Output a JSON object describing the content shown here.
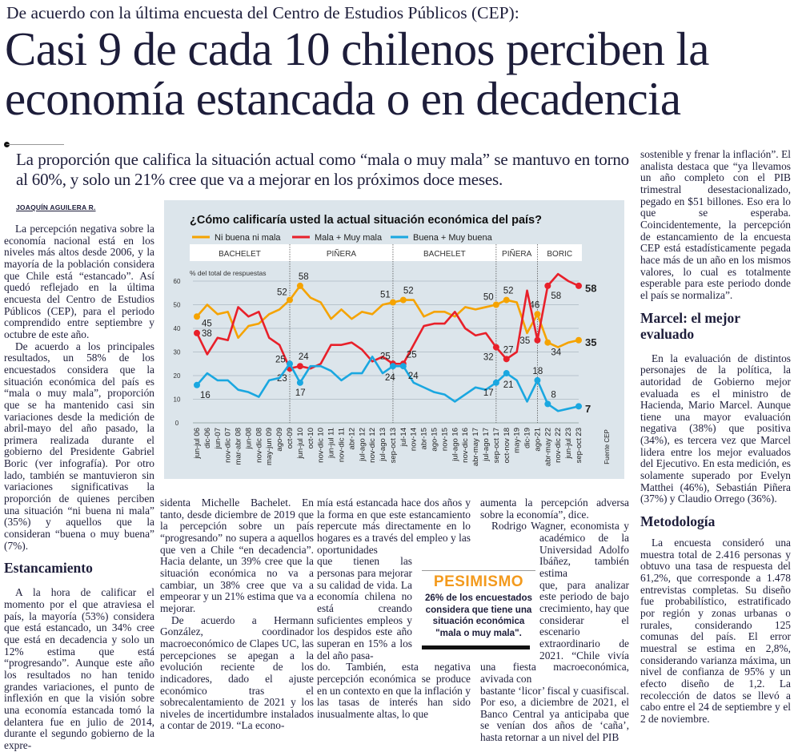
{
  "kicker": "De acuerdo con la última encuesta del Centro de Estudios Públicos (CEP):",
  "headline": [
    "Casi 9 de cada 10 chilenos perciben la",
    "economía estancada o en decadencia"
  ],
  "deck": "La proporción que califica la situación actual como “mala o muy mala” se mantuvo en torno al 60%, y solo un 21% cree que va a mejorar en los próximos doce meses.",
  "byline": "JOAQUÍN AGUILERA R.",
  "col1": {
    "p1": "La percepción negativa sobre la economía nacional está en los niveles más altos desde 2006, y la mayoría de la población considera que Chile está “estancado”. Así quedó reflejado en la última encuesta del Centro de Estudios Públicos (CEP), para el periodo comprendido entre septiembre y octubre de este año.",
    "p2": "De acuerdo a los principales resultados, un 58% de los encuestados considera que la situación económica del país es “mala o muy mala”, proporción que se ha mantenido casi sin variaciones desde la medición de abril-mayo del año pasado, la primera realizada durante el gobierno del Presidente Gabriel Boric (ver infografía). Por otro lado, también se mantuvieron sin variaciones significativas la proporción de quienes perciben una situación “ni buena ni mala” (35%) y aquellos que la consideran “buena o muy buena” (7%).",
    "subhead": "Estancamiento",
    "p3": "A la hora de calificar el momento por el que atraviesa el país, la mayoría (53%) considera que está estancado, un 34% cree que está en decadencia y solo un 12% estima que está “progresando”. Aunque este año los resultados no han tenido grandes variaciones, el punto de inflexión en que la visión sobre una economía estancada tomó la delantera fue en julio de 2014, durante el segundo gobierno de la expre-"
  },
  "col2": {
    "p1": "sidenta Michelle Bachelet. En tanto, desde diciembre de 2019 que la percepción sobre un país “progresando” no supera a aquellos que ven a Chile “en decadencia”. Hacia delante, un 39% cree que la situación económica no va a cambiar, un 38% cree que va a empeorar y un 21% estima que va a mejorar.",
    "p2": "De acuerdo a Hermann González, coordinador macroeconómico de Clapes UC, las percepciones se apegan a la evolución reciente de los indicadores, dado el ajuste económico tras el sobrecalentamiento de 2021 y los niveles de incertidumbre instalados a contar de 2019. “La econo-"
  },
  "col3": {
    "part1": "mía está estancada hace dos años y la forma en que este estancamiento repercute más directamente en lo hogares es a través del empleo y las oportunidades",
    "part2": "que tienen las personas para mejorar su calidad de vida. La economía chilena no está creando suficientes empleos y los despidos este año superan en 15% a los del año pasa-",
    "part3": "do. También, esta negativa percepción económica se produce en un contexto en que la inflación y las tasas de interés han sido inusualmente altas, lo que"
  },
  "col4": {
    "part1a": "aumenta la percepción adversa sobre la economía”, dice.",
    "part1b": "Rodrigo Wagner, economista y académico de la Universidad Adolfo Ibáñez, también estima",
    "part2": "que, para analizar este periodo de bajo crecimiento, hay que considerar el escenario extraordinario de 2021. “Chile vivía una fiesta macroeconómica, avivada con",
    "part3": "bastante ‘licor’ fiscal y cuasifiscal. Por eso, a diciembre de 2021, el Banco Central ya anticipaba que se venían dos años de ‘caña’, hasta retornar a un nivel del PIB"
  },
  "col5": {
    "p1": "sostenible y frenar la inflación”. El analista destaca que “ya llevamos un año completo con el PIB trimestral desestacionalizado, pegado en $51 billones. Eso era lo que se esperaba. Coincidentemente, la percepción de estancamiento de la encuesta CEP está estadísticamente pegada hace más de un año en los mismos valores, lo cual es totalmente esperable para este periodo donde el país se normaliza”.",
    "subhead1": "Marcel: el mejor evaluado",
    "p2": "En la evaluación de distintos personajes de la política, la autoridad de Gobierno mejor evaluada es el ministro de Hacienda, Mario Marcel. Aunque tiene una mayor evaluación negativa (38%) que positiva (34%), es tercera vez que Marcel lidera entre los mejor evaluados del Ejecutivo. En esta medición, es solamente superado por Evelyn Matthei (46%), Sebastián Piñera (37%) y Claudio Orrego (36%).",
    "subhead2": "Metodología",
    "p3": "La encuesta consideró una muestra total de 2.416 personas y obtuvo una tasa de respuesta del 61,2%, que corresponde a 1.478 entrevistas completas. Su diseño fue probabilístico, estratificado por región y zonas urbanas o rurales, considerando 125 comunas del país. El error muestral se estima en 2,8%, considerando varianza máxima, un nivel de confianza de 95% y un efecto diseño de 1,2. La recolección de datos se llevó a cabo entre el 24 de septiembre y el 2 de noviembre."
  },
  "pullquote": {
    "title": "PESIMISMO",
    "text": "26% de los encuestados considera que tiene una situación económica \"mala o muy mala\"."
  },
  "chart_data": {
    "type": "line",
    "title": "¿Cómo calificaría usted la actual situación económica del país?",
    "ylabel": "% del total de respuestas",
    "ylim": [
      0,
      60
    ],
    "yticks": [
      0,
      10,
      20,
      30,
      40,
      50,
      60
    ],
    "grid": true,
    "legend_placement": "top-left",
    "source_label": "Fuente",
    "source": "CEP",
    "categories": [
      "jun-jul 06",
      "dic-06",
      "jun-07",
      "nov-dic 07",
      "mar-abr 08",
      "jun-08",
      "nov-dic 08",
      "may-jun 09",
      "ago-09",
      "oct-09",
      "jun-jul 10",
      "oct-10",
      "nov-dic 10",
      "jun-jul 11",
      "nov-dic 11",
      "abr-12",
      "jul-ago 12",
      "nov-dic 12",
      "jul-ago 13",
      "sep-oct 13",
      "jul-14",
      "nov-14",
      "abr-15",
      "ago-15",
      "nov-15",
      "jul-ago 16",
      "nov-dic 16",
      "abr-may 17",
      "jul-ago 17",
      "sep-oct 17",
      "oct-nov 18",
      "may-19",
      "dic-19",
      "ago-21",
      "abr-may 22",
      "nov-dic 22",
      "jun-jul 23",
      "sep-oct 23"
    ],
    "periods": [
      {
        "label": "BACHELET",
        "start": 0,
        "end": 9
      },
      {
        "label": "PIÑERA",
        "start": 9,
        "end": 19
      },
      {
        "label": "BACHELET",
        "start": 19,
        "end": 29
      },
      {
        "label": "PIÑERA",
        "start": 29,
        "end": 33
      },
      {
        "label": "BORIC",
        "start": 33,
        "end": 37
      }
    ],
    "series": [
      {
        "name": "Ni buena ni mala",
        "color": "#f5a300",
        "values": [
          45,
          50,
          46,
          47,
          36,
          41,
          42,
          46,
          48,
          52,
          58,
          53,
          51,
          44,
          48,
          44,
          47,
          46,
          50,
          51,
          52,
          52,
          45,
          47,
          47,
          45,
          49,
          48,
          49,
          50,
          52,
          51,
          38,
          46,
          34,
          32,
          34,
          35
        ],
        "annotated": [
          0,
          9,
          10,
          19,
          20,
          29,
          30,
          33,
          34,
          37
        ]
      },
      {
        "name": "Mala + Muy mala",
        "color": "#e8202a",
        "values": [
          38,
          29,
          36,
          35,
          49,
          45,
          47,
          36,
          33,
          23,
          24,
          23,
          25,
          33,
          33,
          34,
          31,
          26,
          28,
          25,
          25,
          33,
          41,
          42,
          42,
          47,
          40,
          37,
          38,
          32,
          27,
          30,
          56,
          35,
          58,
          63,
          60,
          58
        ],
        "annotated": [
          0,
          9,
          10,
          19,
          20,
          29,
          30,
          33,
          34,
          37
        ]
      },
      {
        "name": "Buena + Muy buena",
        "color": "#1aa7e0",
        "values": [
          16,
          21,
          18,
          18,
          14,
          13,
          11,
          18,
          19,
          25,
          17,
          24,
          24,
          22,
          18,
          21,
          21,
          28,
          21,
          24,
          24,
          17,
          15,
          13,
          12,
          9,
          12,
          15,
          14,
          17,
          21,
          18,
          9,
          18,
          8,
          5,
          6,
          7
        ],
        "annotated": [
          0,
          9,
          10,
          19,
          20,
          29,
          30,
          33,
          34,
          37
        ]
      }
    ]
  }
}
